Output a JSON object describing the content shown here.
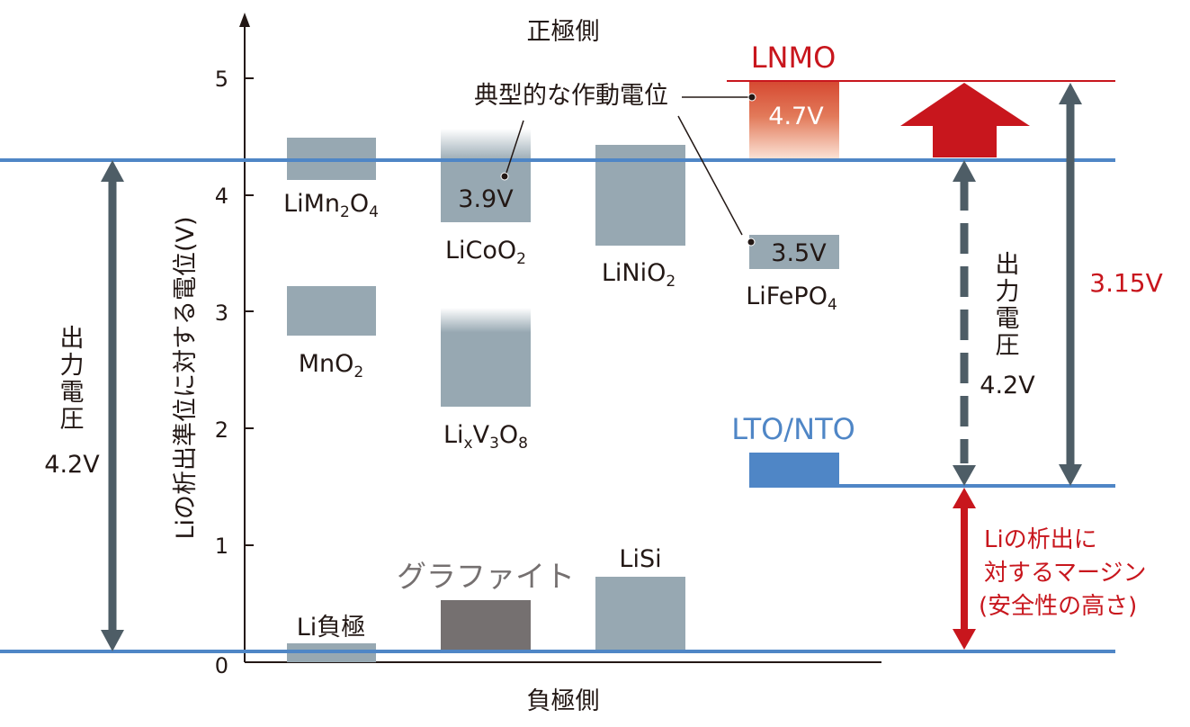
{
  "title_top": "正極側",
  "title_bottom": "負極側",
  "y_axis_label": "Liの析出準位に対する電位(V)",
  "y_ticks": [
    "0",
    "1",
    "2",
    "3",
    "4",
    "5"
  ],
  "annotation_typical": "典型的な作動電位",
  "materials": {
    "limn2o4": {
      "base": "LiMn",
      "s1": "2",
      "mid": "O",
      "s2": "4"
    },
    "mno2": {
      "base": "MnO",
      "s1": "2"
    },
    "li_anode": "Li負極",
    "licoo2": {
      "base": "LiCoO",
      "s1": "2",
      "value": "3.9V"
    },
    "lixv3o8": {
      "base": "Li",
      "s1": "x",
      "mid": "V",
      "s2": "3",
      "mid2": "O",
      "s3": "8"
    },
    "graphite": "グラファイト",
    "linio2": {
      "base": "LiNiO",
      "s1": "2"
    },
    "lisi": "LiSi",
    "lnmo": {
      "name": "LNMO",
      "value": "4.7V"
    },
    "lifepo4": {
      "base": "LiFePO",
      "s1": "4",
      "value": "3.5V"
    },
    "lto": "LTO/NTO"
  },
  "left_voltage": {
    "line1": "出",
    "line2": "力",
    "line3": "電",
    "line4": "圧",
    "value": "4.2V"
  },
  "right_voltage": {
    "line1": "出",
    "line2": "力",
    "line3": "電",
    "line4": "圧",
    "value": "4.2V"
  },
  "lnmo_voltage": "3.15V",
  "margin_note": {
    "line1": "Liの析出に",
    "line2": "対するマージン",
    "line3": "(安全性の高さ)"
  },
  "colors": {
    "blue": "#4f86c6",
    "red": "#c8161d",
    "arrow_gray": "#4e5d66",
    "box_gray": "#97a8b2",
    "graphite": "#757070",
    "text": "#231815"
  }
}
